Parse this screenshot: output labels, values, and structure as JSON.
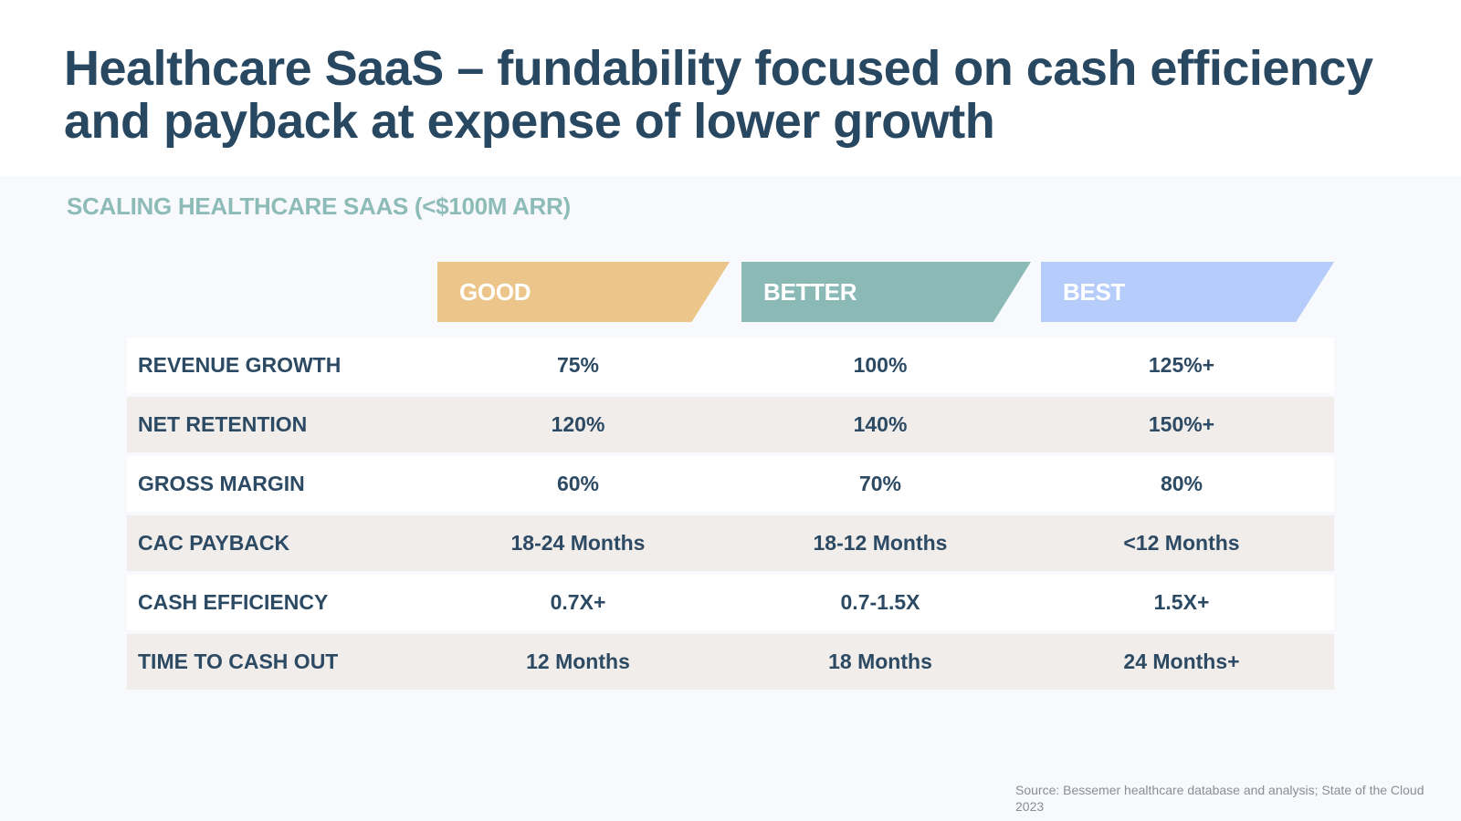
{
  "title": "Healthcare SaaS – fundability focused on cash efficiency and payback at expense of lower growth",
  "subtitle": "SCALING HEALTHCARE SAAS (<$100M ARR)",
  "tiers": [
    {
      "label": "GOOD",
      "color": "#ecc58a"
    },
    {
      "label": "BETTER",
      "color": "#8bbab6"
    },
    {
      "label": "BEST",
      "color": "#b6cdfb"
    }
  ],
  "rows": [
    {
      "label": "REVENUE GROWTH",
      "values": [
        "75%",
        "100%",
        "125%+"
      ]
    },
    {
      "label": "NET RETENTION",
      "values": [
        "120%",
        "140%",
        "150%+"
      ]
    },
    {
      "label": "GROSS MARGIN",
      "values": [
        "60%",
        "70%",
        "80%"
      ]
    },
    {
      "label": "CAC PAYBACK",
      "values": [
        "18-24 Months",
        "18-12 Months",
        "<12 Months"
      ]
    },
    {
      "label": "CASH EFFICIENCY",
      "values": [
        "0.7X+",
        "0.7-1.5X",
        "1.5X+"
      ]
    },
    {
      "label": "TIME TO CASH OUT",
      "values": [
        "12 Months",
        "18 Months",
        "24 Months+"
      ]
    }
  ],
  "source": "Source: Bessemer healthcare database and analysis; State of the Cloud 2023",
  "colors": {
    "title": "#284761",
    "subtitle": "#8dbcb8",
    "row_alt": "#f1edea",
    "background": "#f7f9fc"
  }
}
